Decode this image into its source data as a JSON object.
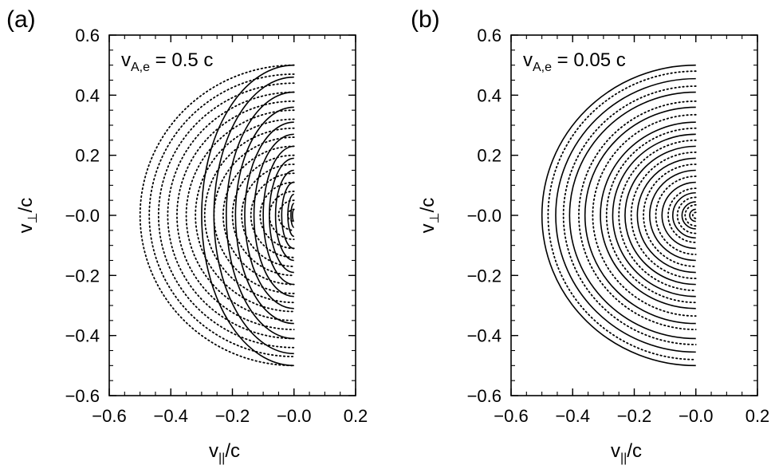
{
  "chart_data": [
    {
      "type": "line",
      "panel_label": "(a)",
      "annotation": {
        "prefix": "v",
        "subscript": "A,e",
        "text": " = 0.5 c"
      },
      "xlabel": {
        "base": "v",
        "subscript": "||",
        "suffix": "/c"
      },
      "ylabel": {
        "base": "v",
        "subscript": "⊥",
        "suffix": "/c"
      },
      "xlim": [
        -0.6,
        0.2
      ],
      "ylim": [
        -0.6,
        0.6
      ],
      "xticks": [
        -0.6,
        -0.4,
        -0.2,
        0.0,
        0.2
      ],
      "xtick_labels": [
        "−0.6",
        "−0.4",
        "−0.2",
        "−0.0",
        "0.2"
      ],
      "yticks": [
        0.6,
        0.4,
        0.2,
        0.0,
        -0.2,
        -0.4,
        -0.6
      ],
      "ytick_labels": [
        "0.6",
        "0.4",
        "0.2",
        "−0.0",
        "−0.2",
        "−0.4",
        "−0.6"
      ],
      "grid": false,
      "series": [
        {
          "style": "solid",
          "shape": "half-ellipse contours (v_par ≤ 0), semi-axis along v_par given first, along v_perp second",
          "contours": [
            [
              0.005,
              0.02
            ],
            [
              0.01,
              0.04
            ],
            [
              0.02,
              0.07
            ],
            [
              0.04,
              0.11
            ],
            [
              0.06,
              0.15
            ],
            [
              0.08,
              0.19
            ],
            [
              0.1,
              0.23
            ],
            [
              0.13,
              0.27
            ],
            [
              0.16,
              0.31
            ],
            [
              0.19,
              0.36
            ],
            [
              0.22,
              0.41
            ],
            [
              0.26,
              0.46
            ],
            [
              0.3,
              0.5
            ]
          ]
        },
        {
          "style": "dotted",
          "shape": "half-circle contours (v_par ≤ 0), radius",
          "contours": [
            0.02,
            0.05,
            0.08,
            0.11,
            0.14,
            0.17,
            0.2,
            0.23,
            0.26,
            0.29,
            0.32,
            0.35,
            0.38,
            0.41,
            0.44,
            0.47,
            0.5
          ]
        }
      ]
    },
    {
      "type": "line",
      "panel_label": "(b)",
      "annotation": {
        "prefix": "v",
        "subscript": "A,e",
        "text": " = 0.05 c"
      },
      "xlabel": {
        "base": "v",
        "subscript": "||",
        "suffix": "/c"
      },
      "ylabel": {
        "base": "v",
        "subscript": "⊥",
        "suffix": "/c"
      },
      "xlim": [
        -0.6,
        0.2
      ],
      "ylim": [
        -0.6,
        0.6
      ],
      "xticks": [
        -0.6,
        -0.4,
        -0.2,
        0.0,
        0.2
      ],
      "xtick_labels": [
        "−0.6",
        "−0.4",
        "−0.2",
        "−0.0",
        "0.2"
      ],
      "yticks": [
        0.6,
        0.4,
        0.2,
        0.0,
        -0.2,
        -0.4,
        -0.6
      ],
      "ytick_labels": [
        "0.6",
        "0.4",
        "0.2",
        "−0.0",
        "−0.2",
        "−0.4",
        "−0.6"
      ],
      "grid": false,
      "series": [
        {
          "style": "solid",
          "shape": "half-ellipse contours (v_par ≤ 0), semi-axis along v_par given first, along v_perp second",
          "contours": [
            [
              0.02,
              0.02
            ],
            [
              0.045,
              0.045
            ],
            [
              0.075,
              0.075
            ],
            [
              0.11,
              0.11
            ],
            [
              0.15,
              0.15
            ],
            [
              0.19,
              0.19
            ],
            [
              0.23,
              0.23
            ],
            [
              0.27,
              0.27
            ],
            [
              0.31,
              0.31
            ],
            [
              0.36,
              0.36
            ],
            [
              0.41,
              0.41
            ],
            [
              0.455,
              0.455
            ],
            [
              0.5,
              0.5
            ]
          ]
        },
        {
          "style": "dotted",
          "shape": "half-circle contours (v_par ≤ 0), radius",
          "contours": [
            0.01,
            0.035,
            0.06,
            0.09,
            0.13,
            0.17,
            0.21,
            0.25,
            0.29,
            0.335,
            0.38,
            0.43,
            0.48
          ]
        }
      ]
    }
  ]
}
